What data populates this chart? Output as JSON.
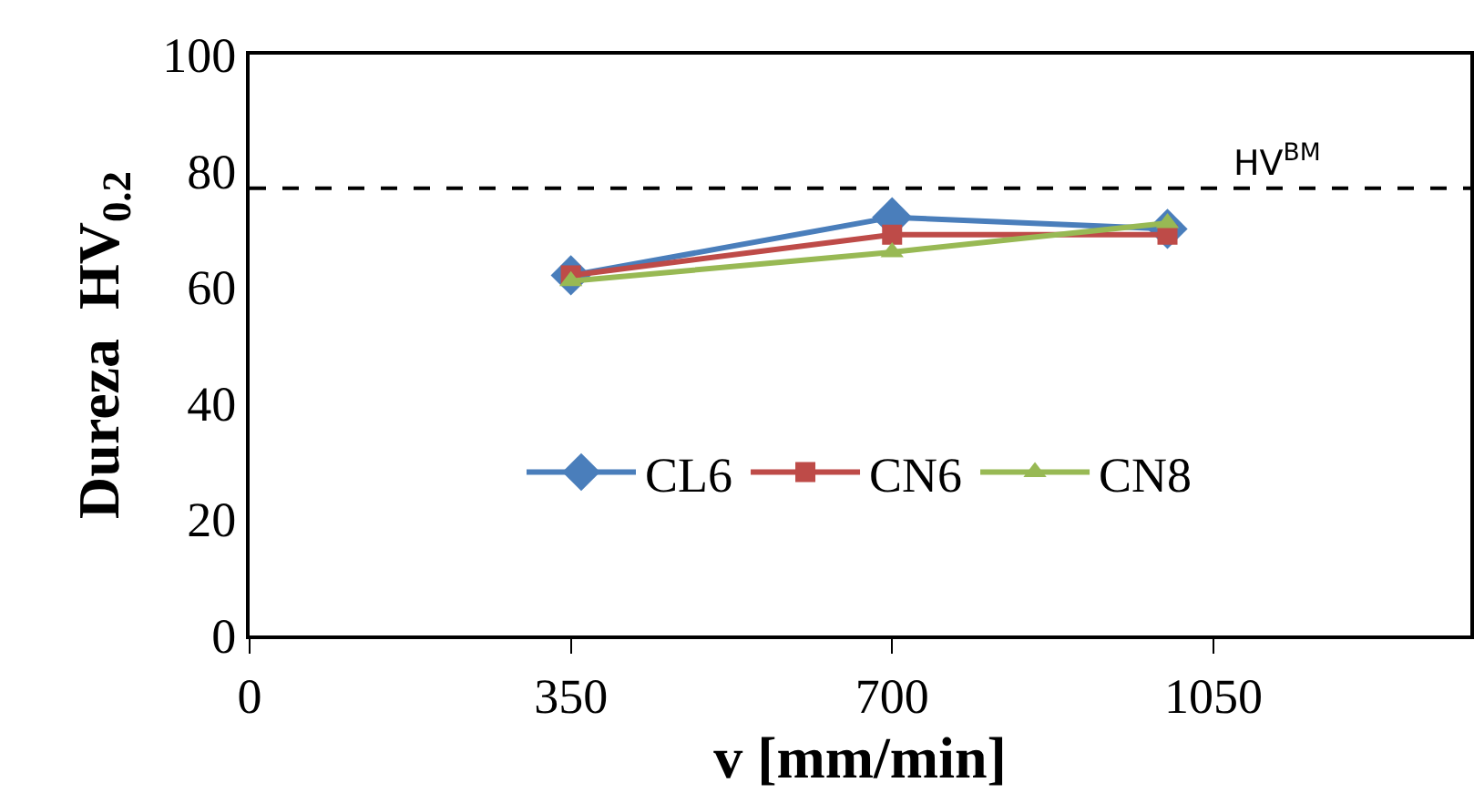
{
  "chart_data": {
    "type": "line",
    "xlabel": "v [mm/min]",
    "ylabel": "Dureza  HV$_{0.2}$",
    "x": [
      350,
      700,
      1000
    ],
    "series": [
      {
        "name": "CL6",
        "color": "#4a7ebb",
        "marker": "diamond",
        "values": [
          62,
          72,
          70
        ]
      },
      {
        "name": "CN6",
        "color": "#be4b48",
        "marker": "square",
        "values": [
          62,
          69,
          69
        ]
      },
      {
        "name": "CN8",
        "color": "#98b954",
        "marker": "triangle",
        "values": [
          61,
          66,
          71
        ]
      }
    ],
    "xlim": [
      0,
      1330
    ],
    "xticks": [
      0,
      350,
      700,
      1050
    ],
    "ylim": [
      0,
      100
    ],
    "yticks": [
      0,
      20,
      40,
      60,
      80,
      100
    ],
    "ref_lines": [
      {
        "axis": "y",
        "value": 77,
        "label": "HV$^{BM}$",
        "color": "#000000",
        "line_style": "dashed"
      }
    ],
    "legend": "bottom",
    "line_style": "solid"
  }
}
